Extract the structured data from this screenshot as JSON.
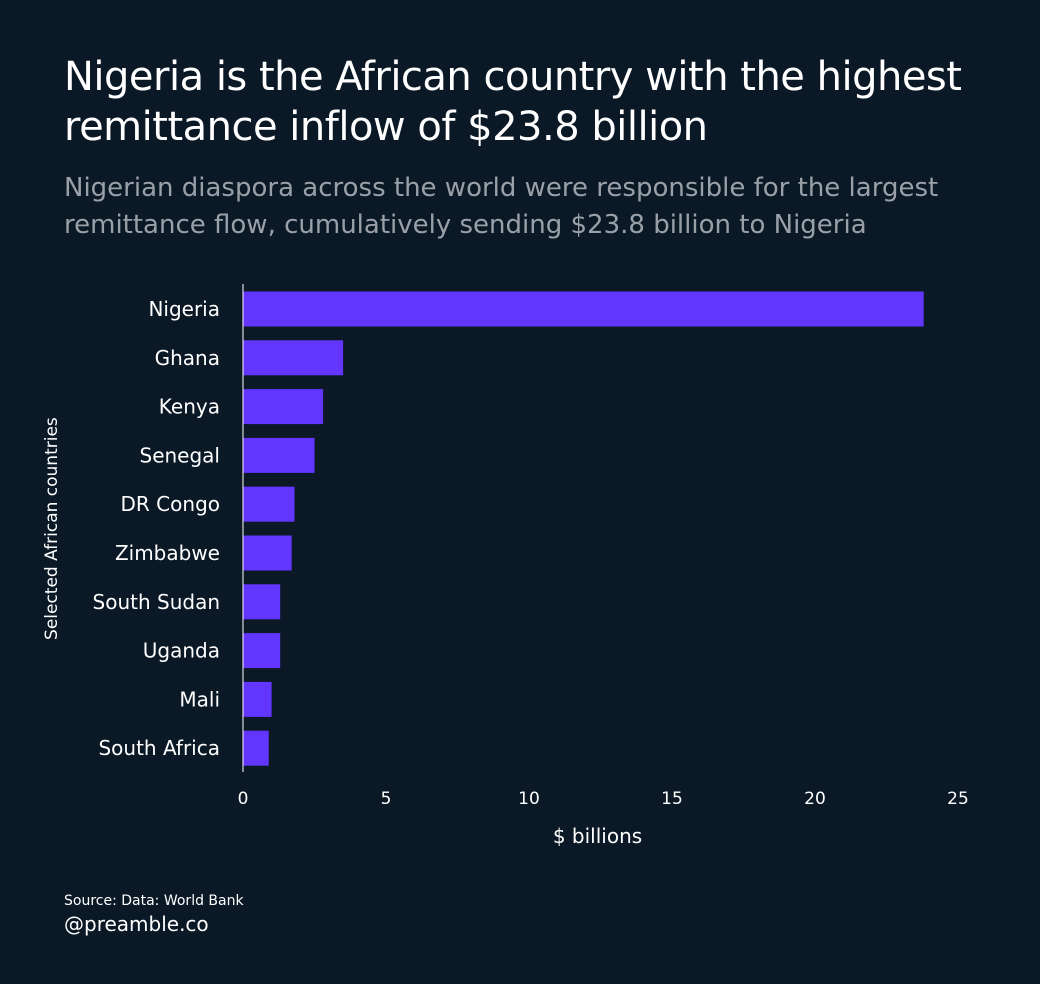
{
  "header": {
    "title": "Nigeria is the African country with the highest remittance inflow of $23.8 billion",
    "subtitle": "Nigerian diaspora across the world were responsible for the largest remittance flow, cumulatively sending $23.8 billion to Nigeria"
  },
  "chart_data": {
    "type": "bar",
    "orientation": "horizontal",
    "categories": [
      "Nigeria",
      "Ghana",
      "Kenya",
      "Senegal",
      "DR Congo",
      "Zimbabwe",
      "South Sudan",
      "Uganda",
      "Mali",
      "South Africa"
    ],
    "values": [
      23.8,
      3.5,
      2.8,
      2.5,
      1.8,
      1.7,
      1.3,
      1.3,
      1.0,
      0.9
    ],
    "xlabel": "$ billions",
    "ylabel": "Selected African countries",
    "xlim": [
      0,
      25
    ],
    "xticks": [
      0,
      5,
      10,
      15,
      20,
      25
    ],
    "grid": false,
    "bar_color": "#6236ff"
  },
  "footer": {
    "source": "Source: Data: World Bank",
    "handle": "@preamble.co"
  },
  "colors": {
    "background": "#0b1826",
    "text": "#ffffff",
    "subtitle": "#9aa0a8",
    "bar": "#6236ff"
  }
}
